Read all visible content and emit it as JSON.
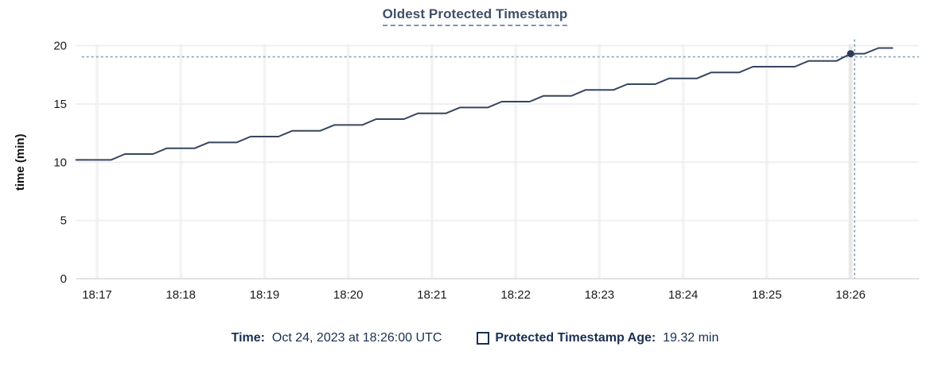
{
  "title": "Oldest Protected Timestamp",
  "footer": {
    "time_label": "Time:",
    "time_value": "Oct 24, 2023 at 18:26:00 UTC",
    "age_label": "Protected Timestamp Age:",
    "age_value": "19.32 min"
  },
  "colors": {
    "line": "#36455f",
    "marker": "#2e3d56",
    "crosshair": "#8ca3b2",
    "grid_h": "#ececee",
    "grid_v": "#f3f3f4",
    "grid_v_active": "#e8e8ea",
    "axis": "#d9d9db",
    "tick_text": "#1a1a1a",
    "axis_label_text": "#111111"
  },
  "chart_data": {
    "type": "line",
    "title": "Oldest Protected Timestamp",
    "xlabel": "",
    "ylabel": "time (min)",
    "ylim": [
      0,
      20
    ],
    "y_ticks": [
      0,
      5,
      10,
      15,
      20
    ],
    "x_ticks": [
      "18:17",
      "18:18",
      "18:19",
      "18:20",
      "18:21",
      "18:22",
      "18:23",
      "18:24",
      "18:25",
      "18:26"
    ],
    "x_domain": [
      "18:16:45",
      "18:26:49"
    ],
    "grid": true,
    "legend_position": "bottom",
    "series": [
      {
        "name": "Protected Timestamp Age",
        "unit": "min",
        "points": [
          [
            "18:16:45",
            10.2
          ],
          [
            "18:16:50",
            10.2
          ],
          [
            "18:17:00",
            10.2
          ],
          [
            "18:17:10",
            10.2
          ],
          [
            "18:17:20",
            10.7
          ],
          [
            "18:17:30",
            10.7
          ],
          [
            "18:17:40",
            10.7
          ],
          [
            "18:17:50",
            11.2
          ],
          [
            "18:18:00",
            11.2
          ],
          [
            "18:18:10",
            11.2
          ],
          [
            "18:18:20",
            11.7
          ],
          [
            "18:18:30",
            11.7
          ],
          [
            "18:18:40",
            11.7
          ],
          [
            "18:18:50",
            12.2
          ],
          [
            "18:19:00",
            12.2
          ],
          [
            "18:19:10",
            12.2
          ],
          [
            "18:19:20",
            12.7
          ],
          [
            "18:19:30",
            12.7
          ],
          [
            "18:19:40",
            12.7
          ],
          [
            "18:19:50",
            13.2
          ],
          [
            "18:20:00",
            13.2
          ],
          [
            "18:20:10",
            13.2
          ],
          [
            "18:20:20",
            13.7
          ],
          [
            "18:20:30",
            13.7
          ],
          [
            "18:20:40",
            13.7
          ],
          [
            "18:20:50",
            14.2
          ],
          [
            "18:21:00",
            14.2
          ],
          [
            "18:21:10",
            14.2
          ],
          [
            "18:21:20",
            14.7
          ],
          [
            "18:21:30",
            14.7
          ],
          [
            "18:21:40",
            14.7
          ],
          [
            "18:21:50",
            15.2
          ],
          [
            "18:22:00",
            15.2
          ],
          [
            "18:22:10",
            15.2
          ],
          [
            "18:22:20",
            15.7
          ],
          [
            "18:22:30",
            15.7
          ],
          [
            "18:22:40",
            15.7
          ],
          [
            "18:22:50",
            16.2
          ],
          [
            "18:23:00",
            16.2
          ],
          [
            "18:23:10",
            16.2
          ],
          [
            "18:23:20",
            16.7
          ],
          [
            "18:23:30",
            16.7
          ],
          [
            "18:23:40",
            16.7
          ],
          [
            "18:23:50",
            17.2
          ],
          [
            "18:24:00",
            17.2
          ],
          [
            "18:24:10",
            17.2
          ],
          [
            "18:24:20",
            17.7
          ],
          [
            "18:24:30",
            17.7
          ],
          [
            "18:24:40",
            17.7
          ],
          [
            "18:24:50",
            18.2
          ],
          [
            "18:25:00",
            18.2
          ],
          [
            "18:25:10",
            18.2
          ],
          [
            "18:25:20",
            18.2
          ],
          [
            "18:25:30",
            18.7
          ],
          [
            "18:25:40",
            18.7
          ],
          [
            "18:25:50",
            18.7
          ],
          [
            "18:26:00",
            19.32
          ],
          [
            "18:26:10",
            19.32
          ],
          [
            "18:26:20",
            19.8
          ],
          [
            "18:26:30",
            19.8
          ]
        ]
      }
    ],
    "highlight": {
      "time": "18:26:00",
      "value": 19.32,
      "time_label": "Oct 24, 2023 at 18:26:00 UTC",
      "value_label": "19.32 min"
    }
  }
}
